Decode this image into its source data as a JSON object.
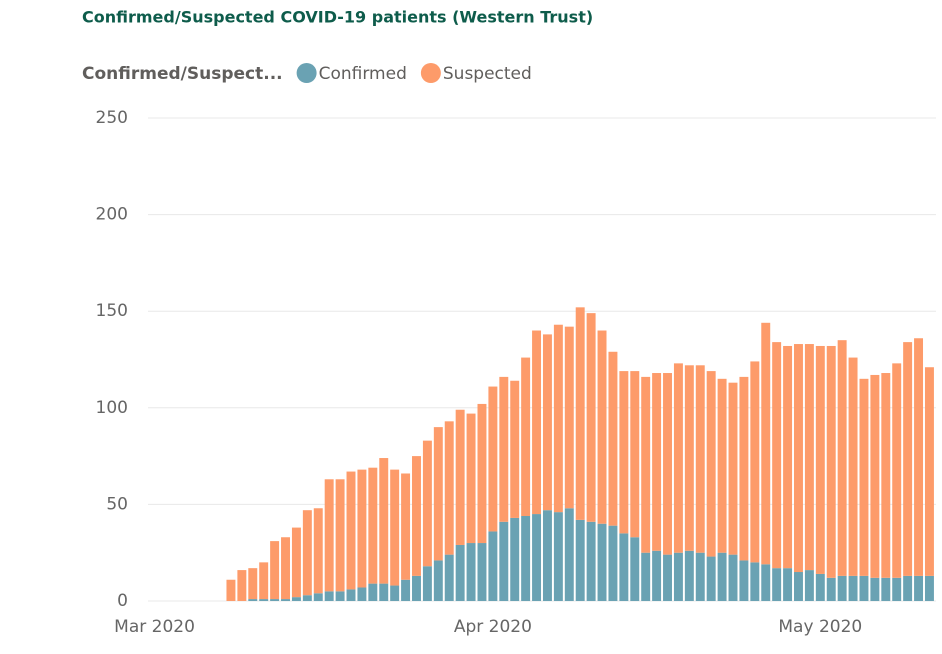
{
  "chart_data": {
    "type": "stacked_bar",
    "title": "Confirmed/Suspected COVID-19 patients (Western Trust)",
    "legend_title": "Confirmed/Suspect...",
    "x": [
      7,
      8,
      9,
      10,
      11,
      12,
      13,
      14,
      15,
      16,
      17,
      18,
      19,
      20,
      21,
      22,
      23,
      24,
      25,
      26,
      27,
      28,
      29,
      30,
      31,
      32,
      33,
      34,
      35,
      36,
      37,
      38,
      39,
      40,
      41,
      42,
      43,
      44,
      45,
      46,
      47,
      48,
      49,
      50,
      51,
      52,
      53,
      54,
      55,
      56,
      57,
      58,
      59,
      60,
      61,
      62,
      63,
      64,
      65,
      66,
      67,
      68,
      69,
      70,
      71
    ],
    "xlim": [
      -0.6,
      71.6
    ],
    "xticks": [
      {
        "value": 0,
        "label": "Mar 2020"
      },
      {
        "value": 31,
        "label": "Apr 2020"
      },
      {
        "value": 61,
        "label": "May 2020"
      }
    ],
    "ylim": [
      0,
      250
    ],
    "yticks": [
      0,
      50,
      100,
      150,
      200,
      250
    ],
    "grid": true,
    "series": [
      {
        "name": "Confirmed",
        "color": "#6aa2b3",
        "values": [
          0,
          0,
          1,
          1,
          1,
          1,
          2,
          3,
          4,
          5,
          5,
          6,
          7,
          9,
          9,
          8,
          11,
          13,
          18,
          21,
          24,
          29,
          30,
          30,
          36,
          41,
          43,
          44,
          45,
          47,
          46,
          48,
          42,
          41,
          40,
          39,
          35,
          33,
          25,
          26,
          24,
          25,
          26,
          25,
          23,
          25,
          24,
          21,
          20,
          19,
          17,
          17,
          15,
          16,
          14,
          12,
          13,
          13,
          13,
          12,
          12,
          12,
          13,
          13,
          13
        ]
      },
      {
        "name": "Suspected",
        "color": "#fd9b6a",
        "values": [
          11,
          16,
          16,
          19,
          30,
          32,
          36,
          44,
          44,
          58,
          58,
          61,
          61,
          60,
          65,
          60,
          55,
          62,
          65,
          69,
          69,
          70,
          67,
          72,
          75,
          75,
          71,
          82,
          95,
          91,
          97,
          94,
          110,
          108,
          100,
          90,
          84,
          86,
          91,
          92,
          94,
          98,
          96,
          97,
          96,
          90,
          89,
          95,
          104,
          125,
          117,
          115,
          118,
          117,
          118,
          120,
          122,
          113,
          102,
          105,
          106,
          111,
          121,
          123,
          108
        ]
      }
    ]
  }
}
